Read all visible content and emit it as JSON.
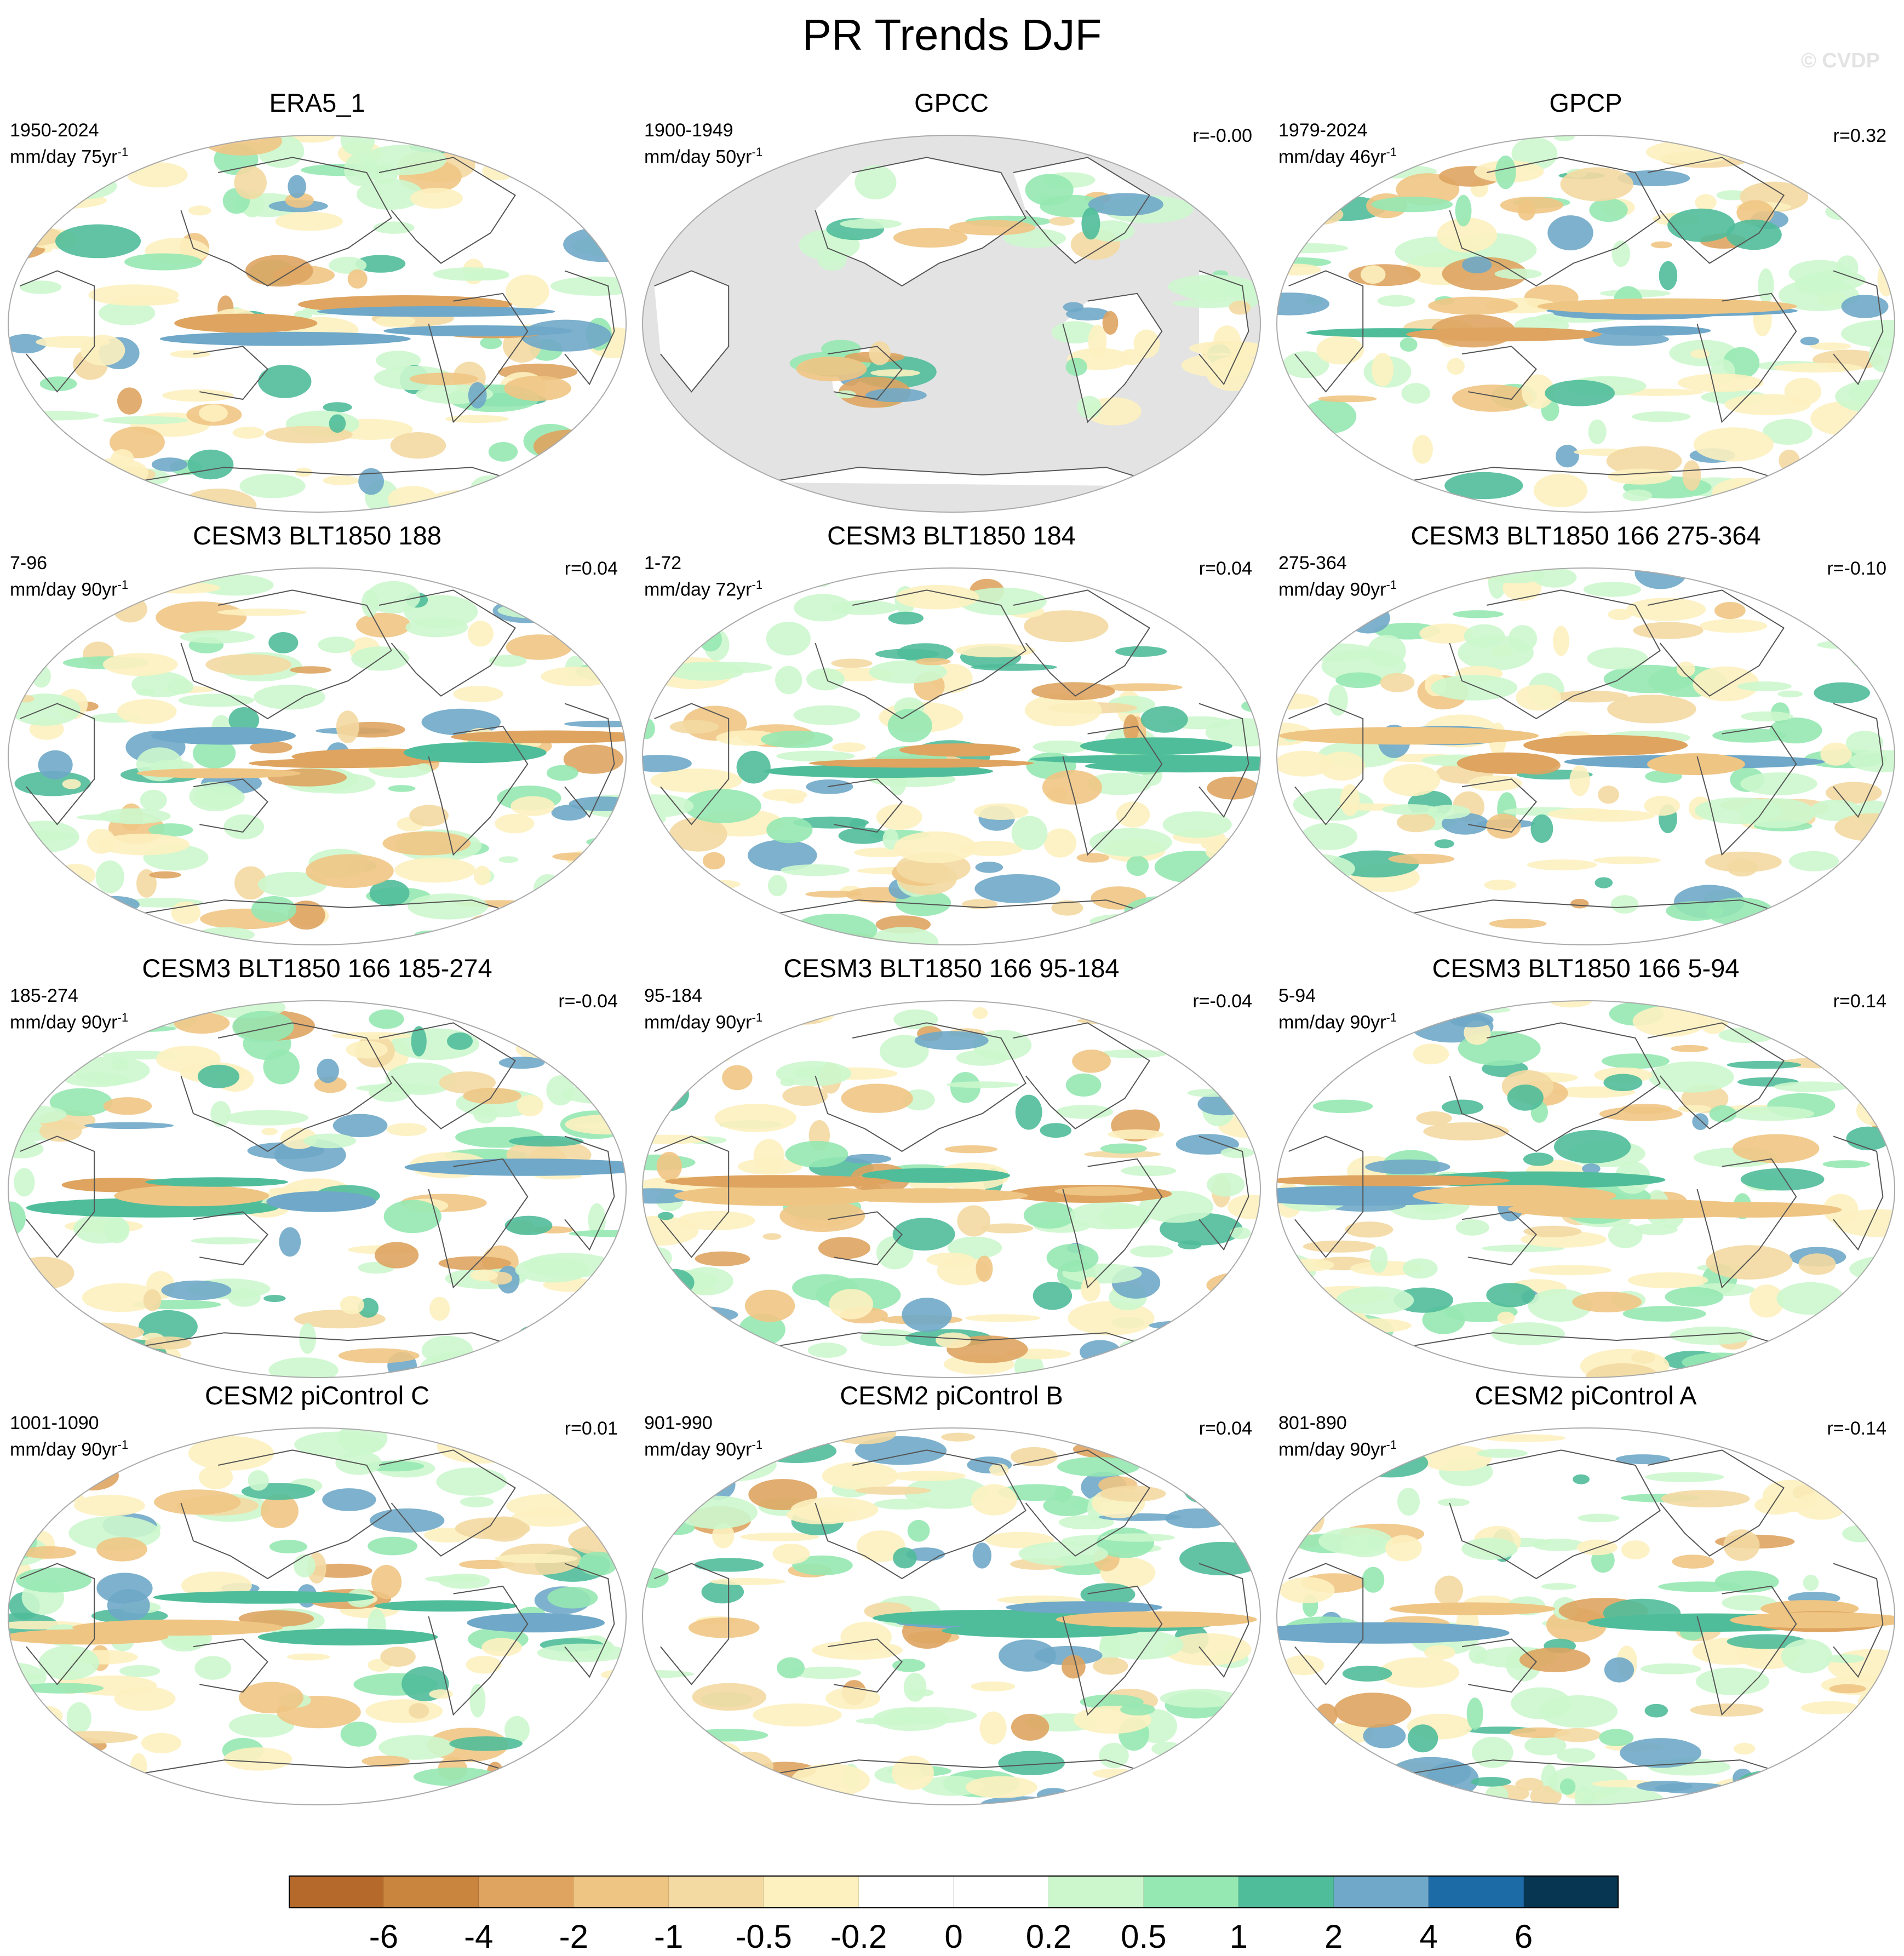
{
  "title": "PR Trends DJF",
  "watermark": "© CVDP",
  "panels": [
    {
      "title": "ERA5_1",
      "period": "1950-2024",
      "units": "mm/day 75yr",
      "units_exp": "-1",
      "corr": "",
      "ocean_masked": false
    },
    {
      "title": "GPCC",
      "period": "1900-1949",
      "units": "mm/day 50yr",
      "units_exp": "-1",
      "corr": "r=-0.00",
      "ocean_masked": true
    },
    {
      "title": "GPCP",
      "period": "1979-2024",
      "units": "mm/day 46yr",
      "units_exp": "-1",
      "corr": "r=0.32",
      "ocean_masked": false
    },
    {
      "title": "CESM3 BLT1850 188",
      "period": "7-96",
      "units": "mm/day 90yr",
      "units_exp": "-1",
      "corr": "r=0.04",
      "ocean_masked": false
    },
    {
      "title": "CESM3 BLT1850 184",
      "period": "1-72",
      "units": "mm/day 72yr",
      "units_exp": "-1",
      "corr": "r=0.04",
      "ocean_masked": false
    },
    {
      "title": "CESM3 BLT1850 166 275-364",
      "period": "275-364",
      "units": "mm/day 90yr",
      "units_exp": "-1",
      "corr": "r=-0.10",
      "ocean_masked": false
    },
    {
      "title": "CESM3 BLT1850 166 185-274",
      "period": "185-274",
      "units": "mm/day 90yr",
      "units_exp": "-1",
      "corr": "r=-0.04",
      "ocean_masked": false
    },
    {
      "title": "CESM3 BLT1850 166 95-184",
      "period": "95-184",
      "units": "mm/day 90yr",
      "units_exp": "-1",
      "corr": "r=-0.04",
      "ocean_masked": false
    },
    {
      "title": "CESM3 BLT1850 166 5-94",
      "period": "5-94",
      "units": "mm/day 90yr",
      "units_exp": "-1",
      "corr": "r=0.14",
      "ocean_masked": false
    },
    {
      "title": "CESM2 piControl C",
      "period": "1001-1090",
      "units": "mm/day 90yr",
      "units_exp": "-1",
      "corr": "r=0.01",
      "ocean_masked": false
    },
    {
      "title": "CESM2 piControl B",
      "period": "901-990",
      "units": "mm/day 90yr",
      "units_exp": "-1",
      "corr": "r=0.04",
      "ocean_masked": false
    },
    {
      "title": "CESM2 piControl A",
      "period": "801-890",
      "units": "mm/day 90yr",
      "units_exp": "-1",
      "corr": "r=-0.14",
      "ocean_masked": false
    }
  ],
  "colorbar": {
    "labels": [
      "-6",
      "-4",
      "-2",
      "-1",
      "-0.5",
      "-0.2",
      "0",
      "0.2",
      "0.5",
      "1",
      "2",
      "4",
      "6"
    ],
    "colors": [
      "#b5692b",
      "#c9843e",
      "#dea460",
      "#efc584",
      "#f3d9a2",
      "#fdf1c0",
      "#ffffff",
      "#ffffff",
      "#ccf7cd",
      "#96e8b2",
      "#50bd9a",
      "#6fa8c8",
      "#1c6aa6",
      "#073652"
    ]
  },
  "colors": {
    "land_outline": "#555555",
    "masked_ocean": "#e3e3e3",
    "map_border": "#aaaaaa"
  }
}
